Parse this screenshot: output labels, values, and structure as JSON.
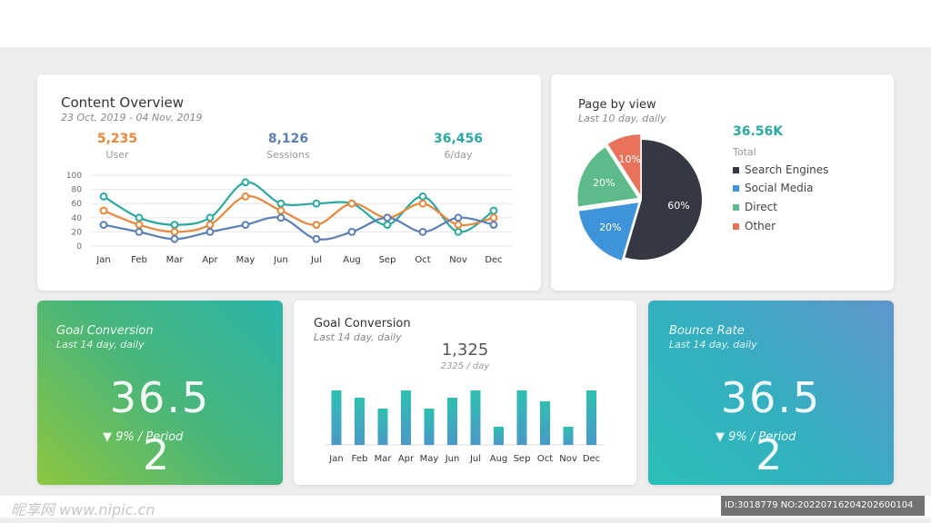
{
  "overview": {
    "title": "Content Overview",
    "date_range": "23 Oct, 2019  - 04 Nov, 2019",
    "stats": [
      {
        "value": "5,235",
        "label": "User",
        "color": "#e8873a"
      },
      {
        "value": "8,126",
        "label": "Sessions",
        "color": "#5b7fb5"
      },
      {
        "value": "36,456",
        "label": "6/day",
        "color": "#2aa9a0"
      }
    ]
  },
  "pie_card": {
    "title": "Page by view",
    "subtitle": "Last 10 day, daily",
    "total_value": "36.56K",
    "total_label": "Total"
  },
  "goal_left": {
    "title": "Goal Conversion",
    "subtitle": "Last 14 day, daily",
    "value": "36.5",
    "change": "▼ 9%  / Period",
    "period_value": "2"
  },
  "goal_mid": {
    "title": "Goal Conversion",
    "subtitle": "Last 14 day, daily",
    "value": "1,325",
    "sub_value": "2325 / day"
  },
  "bounce": {
    "title": "Bounce Rate",
    "subtitle": "Last 14 day, daily",
    "value": "36.5",
    "change": "▼ 9%  / Period",
    "period_value": "2"
  },
  "watermark": {
    "left": "昵享网 www.nipic.cn",
    "right": "ID:3018779 NO:20220716204202600104"
  },
  "chart_data": [
    {
      "type": "line",
      "title": "Content Overview",
      "categories": [
        "Jan",
        "Feb",
        "Mar",
        "Apr",
        "May",
        "Jun",
        "Jul",
        "Aug",
        "Sep",
        "Oct",
        "Nov",
        "Dec"
      ],
      "yticks": [
        0,
        20,
        40,
        60,
        80,
        100
      ],
      "ylim": [
        0,
        100
      ],
      "series": [
        {
          "name": "teal",
          "color": "#2aa9a0",
          "values": [
            70,
            40,
            30,
            40,
            90,
            60,
            60,
            60,
            30,
            70,
            20,
            50
          ]
        },
        {
          "name": "orange",
          "color": "#e8873a",
          "values": [
            50,
            30,
            20,
            30,
            70,
            50,
            30,
            60,
            40,
            60,
            30,
            40
          ]
        },
        {
          "name": "blue",
          "color": "#5b7fb5",
          "values": [
            30,
            20,
            10,
            20,
            30,
            40,
            10,
            20,
            40,
            20,
            40,
            30
          ]
        }
      ]
    },
    {
      "type": "pie",
      "title": "Page by view",
      "slices": [
        {
          "label": "Search Engines",
          "value": 60,
          "text": "60%",
          "color": "#353842"
        },
        {
          "label": "Social Media",
          "value": 20,
          "text": "20%",
          "color": "#3f93d9"
        },
        {
          "label": "Direct",
          "value": 20,
          "text": "20%",
          "color": "#5dbb8a"
        },
        {
          "label": "Other",
          "value": 10,
          "text": "10%",
          "color": "#e8735a"
        }
      ]
    },
    {
      "type": "bar",
      "title": "Goal Conversion",
      "categories": [
        "Jan",
        "Feb",
        "Mar",
        "Apr",
        "May",
        "Jun",
        "Jul",
        "Aug",
        "Sep",
        "Oct",
        "Nov",
        "Dec"
      ],
      "values": [
        60,
        52,
        40,
        60,
        40,
        52,
        60,
        20,
        60,
        48,
        20,
        60
      ],
      "ylim": [
        0,
        60
      ],
      "color_top": "#2ec0b0",
      "color_bottom": "#4a98c8"
    }
  ]
}
